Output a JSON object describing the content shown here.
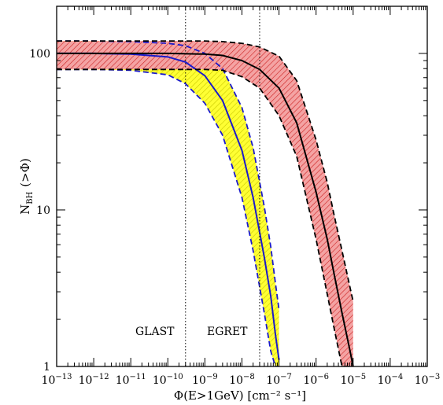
{
  "chart_data": {
    "type": "line",
    "xlabel": "Φ(E>1GeV) [cm⁻² s⁻¹]",
    "ylabel": "N_BH (>Φ)",
    "ylabel_main": "N",
    "ylabel_sub": "BH",
    "ylabel_tail": "(>Φ)",
    "xscale": "log",
    "yscale": "log",
    "xlim": [
      1e-13,
      0.001
    ],
    "ylim": [
      1,
      200
    ],
    "x_ticks": [
      {
        "value": 1e-13,
        "label": "10",
        "exp": "−13"
      },
      {
        "value": 1e-12,
        "label": "10",
        "exp": "−12"
      },
      {
        "value": 1e-11,
        "label": "10",
        "exp": "−11"
      },
      {
        "value": 1e-10,
        "label": "10",
        "exp": "−10"
      },
      {
        "value": 1e-09,
        "label": "10",
        "exp": "−9"
      },
      {
        "value": 1e-08,
        "label": "10",
        "exp": "−8"
      },
      {
        "value": 1e-07,
        "label": "10",
        "exp": "−7"
      },
      {
        "value": 1e-06,
        "label": "10",
        "exp": "−6"
      },
      {
        "value": 1e-05,
        "label": "10",
        "exp": "−5"
      },
      {
        "value": 0.0001,
        "label": "10",
        "exp": "−4"
      },
      {
        "value": 0.001,
        "label": "10",
        "exp": "−3"
      }
    ],
    "y_ticks": [
      {
        "value": 1,
        "label": "1"
      },
      {
        "value": 10,
        "label": "10"
      },
      {
        "value": 100,
        "label": "100"
      }
    ],
    "thresholds": [
      {
        "label": "GLAST",
        "x": 3e-10
      },
      {
        "label": "EGRET",
        "x": 3e-08
      }
    ],
    "series": [
      {
        "color": "#1a1acc",
        "band_fill": "#ffff33",
        "band_hatch": "#c8c800",
        "x": [
          1e-13,
          1e-12,
          1e-11,
          1e-10,
          3e-10,
          1e-09,
          3e-09,
          1e-08,
          2e-08,
          4e-08,
          6e-08,
          8e-08,
          1e-07
        ],
        "values": [
          100,
          100,
          99,
          95,
          88,
          72,
          50,
          24,
          12,
          5,
          2.8,
          1.6,
          1.1
        ],
        "upper": [
          120,
          120,
          119,
          116,
          112,
          100,
          80,
          45,
          25,
          10.5,
          5.8,
          3.4,
          2.3
        ],
        "lower": [
          79,
          79,
          78,
          73,
          64,
          48,
          30,
          12,
          5.5,
          2.2,
          1.25,
          1,
          1
        ]
      },
      {
        "color": "#000000",
        "band_fill": "#f4a3a3",
        "band_hatch": "#cc2222",
        "x": [
          1e-13,
          1e-11,
          1e-10,
          1e-09,
          3e-09,
          1e-08,
          3e-08,
          1e-07,
          3e-07,
          1e-06,
          2e-06,
          3e-06,
          5e-06,
          8e-06,
          1e-05
        ],
        "values": [
          100,
          100,
          100,
          99,
          97,
          90,
          79,
          60,
          36,
          13,
          6.5,
          4,
          2.2,
          1.3,
          1.0
        ],
        "upper": [
          120,
          120,
          120,
          120,
          119,
          116,
          110,
          96,
          67,
          28,
          15,
          9.5,
          5.5,
          3.3,
          2.6
        ],
        "lower": [
          79,
          79,
          79,
          79,
          78,
          71,
          60,
          40,
          22,
          6.5,
          2.9,
          1.8,
          1.0,
          1.0,
          1.0
        ]
      }
    ]
  }
}
